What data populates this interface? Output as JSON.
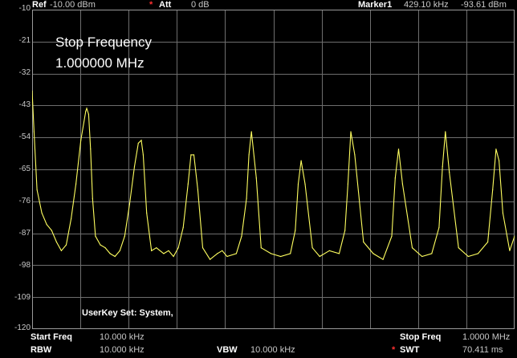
{
  "header": {
    "ref_label": "Ref",
    "ref_value": "-10.00 dBm",
    "att_label": "Att",
    "att_value": "0 dB",
    "marker_label": "Marker1",
    "marker_freq": "429.10 kHz",
    "marker_level": "-93.61 dBm"
  },
  "overlay": {
    "title": "Stop Frequency",
    "value": "1.000000 MHz",
    "userkey": "UserKey Set:   System,"
  },
  "footer": {
    "start_label": "Start Freq",
    "start_value": "10.000 kHz",
    "stop_label": "Stop Freq",
    "stop_value": "1.0000 MHz",
    "rbw_label": "RBW",
    "rbw_value": "10.000 kHz",
    "vbw_label": "VBW",
    "vbw_value": "10.000 kHz",
    "swt_label": "SWT",
    "swt_value": "70.411 ms"
  },
  "colors": {
    "trace": "#ffff60",
    "grid": "#6e6e6e",
    "accent_star": "#ff3030"
  },
  "chart_data": {
    "type": "line",
    "title": "",
    "xlabel": "",
    "ylabel": "",
    "ylim": [
      -120,
      -10
    ],
    "yticks": [
      "-10",
      "-21",
      "-32",
      "-43",
      "-54",
      "-65",
      "-76",
      "-87",
      "-98",
      "-109",
      "-120"
    ],
    "xlim_khz": [
      10,
      1000
    ],
    "grid": true,
    "series": [
      {
        "x": [
          10,
          14,
          20,
          30,
          40,
          50,
          60,
          70,
          80,
          90,
          100,
          110,
          120,
          122,
          126,
          130,
          134,
          140,
          150,
          160,
          170,
          180,
          190,
          200,
          210,
          220,
          228,
          234,
          238,
          245,
          255,
          265,
          280,
          290,
          300,
          310,
          320,
          330,
          336,
          342,
          350,
          360,
          375,
          390,
          400,
          410,
          429,
          440,
          450,
          455,
          460,
          470,
          480,
          500,
          520,
          540,
          550,
          556,
          562,
          570,
          585,
          600,
          620,
          640,
          652,
          658,
          664,
          672,
          690,
          710,
          730,
          748,
          755,
          762,
          770,
          790,
          810,
          830,
          845,
          852,
          858,
          866,
          885,
          905,
          925,
          945,
          955,
          962,
          968,
          976,
          990,
          1000
        ],
        "y": [
          -38,
          -52,
          -72,
          -80,
          -84,
          -86,
          -90,
          -93,
          -91,
          -82,
          -70,
          -55,
          -45,
          -44,
          -46,
          -58,
          -75,
          -88,
          -91,
          -92,
          -94,
          -95,
          -93,
          -88,
          -77,
          -64,
          -56,
          -55,
          -60,
          -80,
          -93,
          -92,
          -94,
          -93,
          -95,
          -92,
          -85,
          -70,
          -60,
          -60,
          -72,
          -92,
          -96,
          -94,
          -93,
          -95,
          -94,
          -88,
          -75,
          -60,
          -52,
          -68,
          -92,
          -94,
          -95,
          -94,
          -86,
          -70,
          -62,
          -70,
          -92,
          -95,
          -93,
          -94,
          -86,
          -70,
          -52,
          -60,
          -90,
          -94,
          -96,
          -88,
          -68,
          -58,
          -70,
          -92,
          -95,
          -94,
          -85,
          -64,
          -52,
          -66,
          -92,
          -95,
          -94,
          -90,
          -72,
          -58,
          -62,
          -80,
          -93,
          -88
        ]
      }
    ]
  }
}
